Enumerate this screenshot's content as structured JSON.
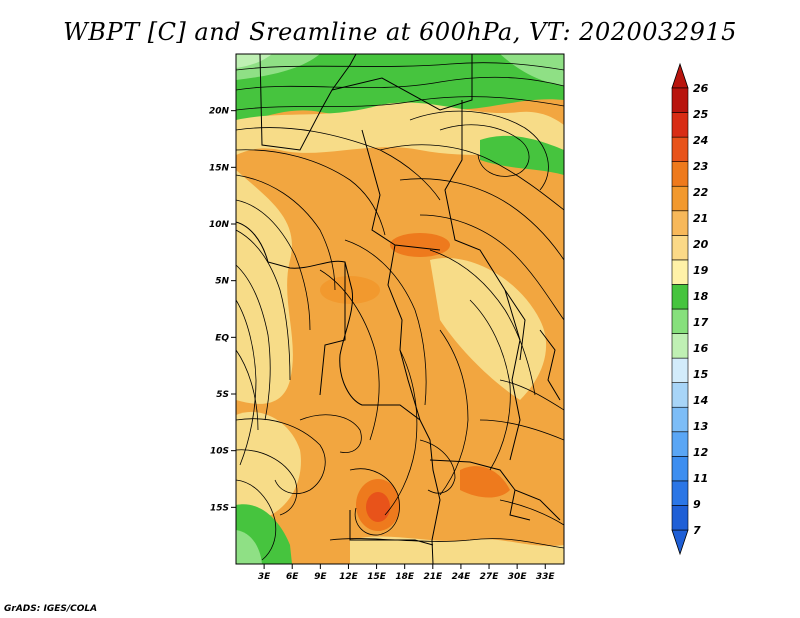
{
  "title": "WBPT [C] and Sreamline at 600hPa, VT: 2020032915",
  "credit": "GrADS: IGES/COLA",
  "map": {
    "lon_labels": [
      "3E",
      "6E",
      "9E",
      "12E",
      "15E",
      "18E",
      "21E",
      "24E",
      "27E",
      "30E",
      "33E"
    ],
    "lat_labels": [
      "20N",
      "15N",
      "10N",
      "5N",
      "EQ",
      "5S",
      "10S",
      "15S"
    ],
    "lon_values": [
      3,
      6,
      9,
      12,
      15,
      18,
      21,
      24,
      27,
      30,
      33
    ],
    "lat_values": [
      20,
      15,
      10,
      5,
      0,
      -5,
      -10,
      -15
    ],
    "lon_range": [
      0,
      35
    ],
    "lat_range": [
      -20,
      25
    ]
  },
  "colorbar": {
    "labels": [
      "7",
      "9",
      "11",
      "12",
      "13",
      "14",
      "15",
      "16",
      "17",
      "18",
      "19",
      "20",
      "21",
      "22",
      "23",
      "24",
      "25",
      "26"
    ],
    "colors": [
      "#1f5fd6",
      "#2b76e6",
      "#3d8ef0",
      "#5aa6f5",
      "#7dbdf7",
      "#a8d5f8",
      "#d3ecfb",
      "#bff0b4",
      "#86e07c",
      "#46c43e",
      "#fff2a8",
      "#fbd987",
      "#f7b85a",
      "#f2992e",
      "#ee7a1d",
      "#e8531a",
      "#d82d15",
      "#b8150e"
    ]
  },
  "colors": {
    "ocean_green": "#8fe085",
    "land_orange": "#f2a640",
    "pale_yellow": "#f7dc88",
    "dark_orange": "#e8702a"
  }
}
